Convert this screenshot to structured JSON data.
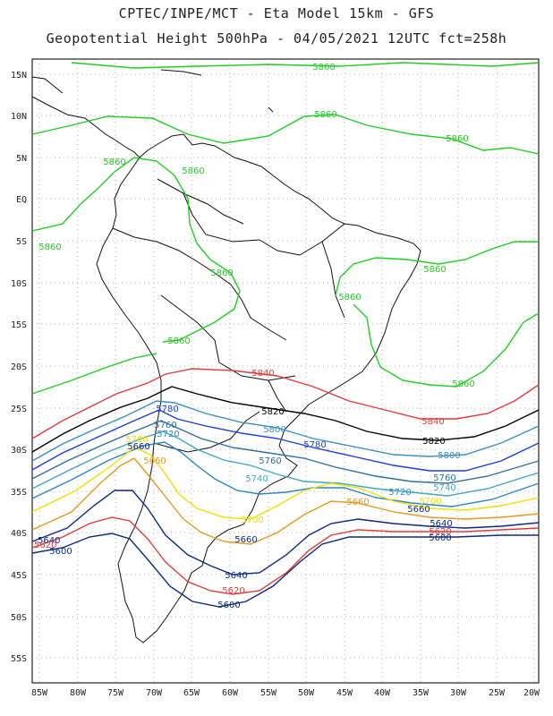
{
  "header": {
    "line1": "CPTEC/INPE/MCT - Eta Model 15km - GFS",
    "line2": "Geopotential Height 500hPa - 04/05/2021 12UTC fct=258h"
  },
  "axes": {
    "lat_labels": [
      "15N",
      "10N",
      "5N",
      "EQ",
      "5S",
      "10S",
      "15S",
      "20S",
      "25S",
      "30S",
      "35S",
      "40S",
      "45S",
      "50S",
      "55S"
    ],
    "lon_labels": [
      "85W",
      "80W",
      "75W",
      "70W",
      "65W",
      "60W",
      "55W",
      "50W",
      "45W",
      "40W",
      "35W",
      "30W",
      "25W",
      "20W"
    ]
  },
  "colors": {
    "c5860": "#22cc22",
    "c5840": "#e03c3c",
    "c5820": "#000000",
    "c5800": "#3a8fc0",
    "c5780": "#1c3fd8",
    "c5760": "#2f6fa0",
    "c5740": "#3fa6c6",
    "c5720": "#2b86c6",
    "c5700": "#f0e000",
    "c5660": "#e09a20",
    "c5640": "#0a2a80",
    "c5620": "#e03c3c",
    "c5600": "#0a2a80"
  },
  "labels": {
    "l5860": "5860",
    "l5840": "5840",
    "l5820": "5820",
    "l5800": "5800",
    "l5780": "5780",
    "l5760": "5760",
    "l5740": "5740",
    "l5720": "5720",
    "l5700": "5700",
    "l5660": "5660",
    "l5640": "5640",
    "l5620": "5620",
    "l5600": "5600"
  }
}
